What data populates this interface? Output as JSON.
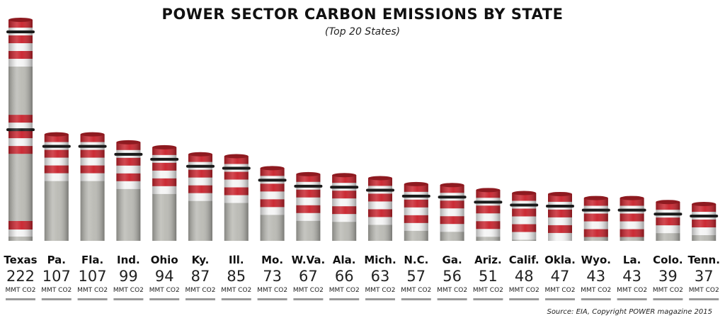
{
  "title": "POWER SECTOR CARBON EMISSIONS BY STATE",
  "subtitle": "(Top 20 States)",
  "source": "Source: EIA, Copyright POWER magazine 2015",
  "colors": {
    "stripe_red": "#c8202a",
    "stripe_white": "#f4f4f4",
    "concrete": "#b9b9b3",
    "band": "#1a1a1a",
    "underline": "#9a9a9a"
  },
  "chart_data": {
    "type": "bar",
    "title": "POWER SECTOR CARBON EMISSIONS BY STATE",
    "subtitle": "(Top 20 States)",
    "categories": [
      "Texas",
      "Pa.",
      "Fla.",
      "Ind.",
      "Ohio",
      "Ky.",
      "Ill.",
      "Mo.",
      "W.Va.",
      "Ala.",
      "Mich.",
      "N.C.",
      "Ga.",
      "Ariz.",
      "Calif.",
      "Okla.",
      "Wyo.",
      "La.",
      "Colo.",
      "Tenn."
    ],
    "values": [
      222,
      107,
      107,
      99,
      94,
      87,
      85,
      73,
      67,
      66,
      63,
      57,
      56,
      51,
      48,
      47,
      43,
      43,
      39,
      37
    ],
    "value_labels": [
      "222",
      "107",
      "107",
      "99",
      "94",
      "87",
      "85",
      "73",
      "67",
      "66",
      "63",
      "57",
      "56",
      "51",
      "48",
      "47",
      "43",
      "43",
      "39",
      "37"
    ],
    "unit": "MMT CO2",
    "ylim": [
      0,
      222
    ],
    "grid": false,
    "legend": "none"
  }
}
